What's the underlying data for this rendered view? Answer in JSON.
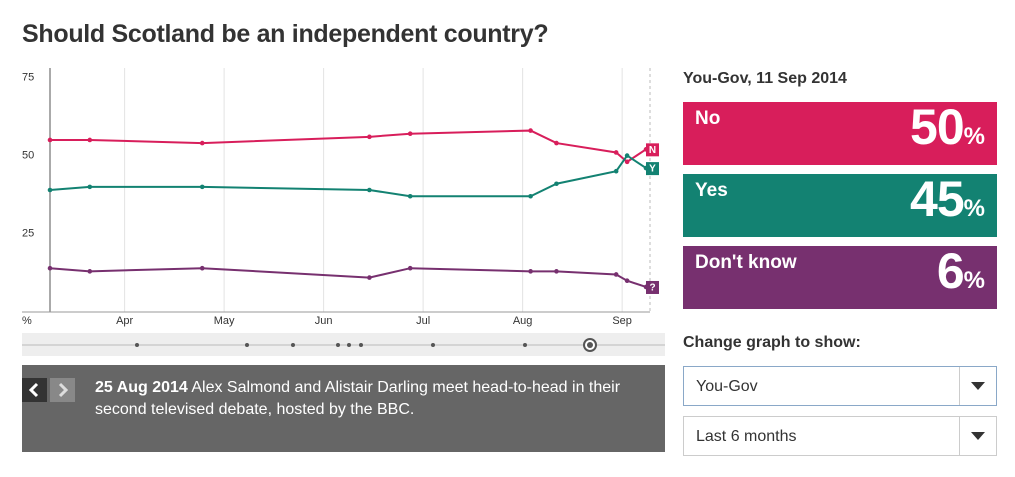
{
  "title": "Should Scotland be an independent country?",
  "chart_data": {
    "type": "line",
    "y_label": "%",
    "x": [
      3.25,
      3.65,
      4.78,
      6.46,
      6.87,
      8.08,
      8.34,
      8.94,
      9.05,
      9.24
    ],
    "xlim": [
      3.25,
      9.28
    ],
    "xticks": [
      {
        "value": 4,
        "label": "Apr"
      },
      {
        "value": 5,
        "label": "May"
      },
      {
        "value": 6,
        "label": "Jun"
      },
      {
        "value": 7,
        "label": "Jul"
      },
      {
        "value": 8,
        "label": "Aug"
      },
      {
        "value": 9,
        "label": "Sep"
      }
    ],
    "ylim": [
      0,
      78
    ],
    "yticks": [
      25,
      50,
      75
    ],
    "grid": "x",
    "series": [
      {
        "name": "No",
        "tag": "N",
        "color": "#d81e5b",
        "values": [
          55,
          55,
          54,
          56,
          57,
          58,
          54,
          51,
          48,
          52
        ]
      },
      {
        "name": "Yes",
        "tag": "Y",
        "color": "#138272",
        "values": [
          39,
          40,
          40,
          39,
          37,
          37,
          41,
          45,
          50,
          46
        ]
      },
      {
        "name": "Don't know",
        "tag": "?",
        "color": "#77306f",
        "values": [
          14,
          13,
          14,
          11,
          14,
          13,
          13,
          12,
          10,
          8
        ]
      }
    ]
  },
  "timeline": {
    "date": "25 Aug 2014",
    "text": "Alex Salmond and Alistair Darling meet head-to-head in their second televised debate, hosted by the BBC."
  },
  "panel": {
    "title": "You-Gov, 11 Sep 2014",
    "unit": "%",
    "values": [
      50,
      45,
      6
    ]
  },
  "controls": {
    "label": "Change graph to show:",
    "options": [
      "You-Gov",
      "Last 6 months"
    ]
  }
}
